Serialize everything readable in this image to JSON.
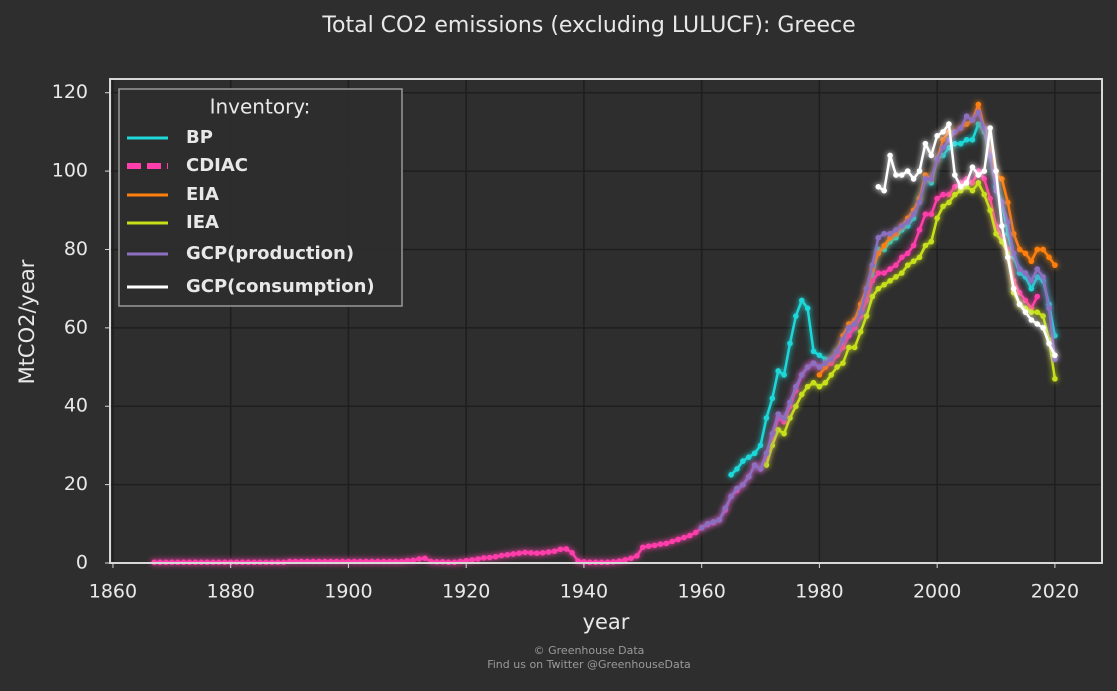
{
  "chart_data": {
    "type": "line",
    "title": "Total CO2 emissions (excluding LULUCF): Greece",
    "xlabel": "year",
    "ylabel": "MtCO2/year",
    "legend_title": "Inventory:",
    "legend": "upper left",
    "credits": [
      "© Greenhouse Data",
      "Find us on Twitter @GreenhouseData"
    ],
    "xlim": [
      1859.5,
      2028
    ],
    "ylim": [
      0,
      123.5
    ],
    "xticks": [
      1860,
      1880,
      1900,
      1920,
      1940,
      1960,
      1980,
      2000,
      2020
    ],
    "yticks": [
      0,
      20,
      40,
      60,
      80,
      100,
      120
    ],
    "grid": true,
    "series": [
      {
        "name": "BP",
        "color": "#1fd8d8",
        "dash": false,
        "x": [
          1965,
          1966,
          1967,
          1968,
          1969,
          1970,
          1971,
          1972,
          1973,
          1974,
          1975,
          1976,
          1977,
          1978,
          1979,
          1980,
          1981,
          1982,
          1983,
          1984,
          1985,
          1986,
          1987,
          1988,
          1989,
          1990,
          1991,
          1992,
          1993,
          1994,
          1995,
          1996,
          1997,
          1998,
          1999,
          2000,
          2001,
          2002,
          2003,
          2004,
          2005,
          2006,
          2007,
          2008,
          2009,
          2010,
          2011,
          2012,
          2013,
          2014,
          2015,
          2016,
          2017,
          2018,
          2019,
          2020
        ],
        "values": [
          22.5,
          24,
          26,
          27,
          28,
          30,
          37,
          42,
          49,
          48,
          56,
          63,
          67,
          65,
          54,
          53,
          52,
          52,
          54,
          56,
          59,
          60,
          63,
          67,
          73,
          80,
          80,
          82,
          83,
          85,
          86,
          88,
          93,
          98,
          97,
          103,
          104,
          106,
          107,
          107,
          108,
          108,
          112,
          110,
          104,
          96,
          92,
          84,
          78,
          74,
          73,
          70,
          73,
          72,
          66,
          58
        ]
      },
      {
        "name": "CDIAC",
        "color": "#ff3dab",
        "dash": true,
        "x": [
          1867,
          1868,
          1869,
          1870,
          1871,
          1872,
          1873,
          1874,
          1875,
          1876,
          1877,
          1878,
          1879,
          1880,
          1881,
          1882,
          1883,
          1884,
          1885,
          1886,
          1887,
          1888,
          1889,
          1890,
          1891,
          1892,
          1893,
          1894,
          1895,
          1896,
          1897,
          1898,
          1899,
          1900,
          1901,
          1902,
          1903,
          1904,
          1905,
          1906,
          1907,
          1908,
          1909,
          1910,
          1911,
          1912,
          1913,
          1914,
          1915,
          1916,
          1917,
          1918,
          1919,
          1920,
          1921,
          1922,
          1923,
          1924,
          1925,
          1926,
          1927,
          1928,
          1929,
          1930,
          1931,
          1932,
          1933,
          1934,
          1935,
          1936,
          1937,
          1938,
          1939,
          1940,
          1941,
          1942,
          1943,
          1944,
          1945,
          1946,
          1947,
          1948,
          1949,
          1950,
          1951,
          1952,
          1953,
          1954,
          1955,
          1956,
          1957,
          1958,
          1959,
          1960,
          1961,
          1962,
          1963,
          1964,
          1965,
          1966,
          1967,
          1968,
          1969,
          1970,
          1971,
          1972,
          1973,
          1974,
          1975,
          1976,
          1977,
          1978,
          1979,
          1980,
          1981,
          1982,
          1983,
          1984,
          1985,
          1986,
          1987,
          1988,
          1989,
          1990,
          1991,
          1992,
          1993,
          1994,
          1995,
          1996,
          1997,
          1998,
          1999,
          2000,
          2001,
          2002,
          2003,
          2004,
          2005,
          2006,
          2007,
          2008,
          2009,
          2010,
          2011,
          2012,
          2013,
          2014,
          2015,
          2016,
          2017
        ],
        "values": [
          0.2,
          0.2,
          0.2,
          0.2,
          0.2,
          0.2,
          0.2,
          0.2,
          0.2,
          0.2,
          0.2,
          0.2,
          0.2,
          0.2,
          0.2,
          0.2,
          0.2,
          0.2,
          0.2,
          0.2,
          0.2,
          0.2,
          0.2,
          0.4,
          0.4,
          0.4,
          0.4,
          0.4,
          0.4,
          0.4,
          0.4,
          0.4,
          0.4,
          0.4,
          0.4,
          0.4,
          0.4,
          0.4,
          0.4,
          0.4,
          0.4,
          0.4,
          0.4,
          0.6,
          0.7,
          1.0,
          1.2,
          0.4,
          0.3,
          0.3,
          0.2,
          0.2,
          0.4,
          0.6,
          0.8,
          1.0,
          1.3,
          1.4,
          1.6,
          1.9,
          2.1,
          2.3,
          2.5,
          2.7,
          2.6,
          2.5,
          2.6,
          2.8,
          3.0,
          3.5,
          3.6,
          2.6,
          0.5,
          0.3,
          0.2,
          0.2,
          0.2,
          0.2,
          0.3,
          0.5,
          0.8,
          1.2,
          1.8,
          4.0,
          4.3,
          4.5,
          4.8,
          5.0,
          5.5,
          6.0,
          6.5,
          7.0,
          7.8,
          9.0,
          9.8,
          10.3,
          11.0,
          13.5,
          17,
          18.5,
          20,
          22,
          25,
          24,
          27,
          32,
          37,
          36,
          40,
          44,
          48,
          50,
          51,
          50,
          50,
          51,
          53,
          55,
          58,
          60,
          63,
          67,
          72,
          74,
          74,
          75,
          76,
          78,
          79,
          81,
          85,
          89,
          89,
          93,
          94,
          94,
          96,
          97,
          98,
          97,
          100,
          98,
          93,
          86,
          83,
          80,
          72,
          69,
          67,
          65,
          68
        ]
      },
      {
        "name": "EIA",
        "color": "#ff7f0e",
        "dash": false,
        "x": [
          1980,
          1981,
          1982,
          1983,
          1984,
          1985,
          1986,
          1987,
          1988,
          1989,
          1990,
          1991,
          1992,
          1993,
          1994,
          1995,
          1996,
          1997,
          1998,
          1999,
          2000,
          2001,
          2002,
          2003,
          2004,
          2005,
          2006,
          2007,
          2008,
          2009,
          2010,
          2011,
          2012,
          2013,
          2014,
          2015,
          2016,
          2017,
          2018,
          2019,
          2020
        ],
        "values": [
          48,
          50,
          52,
          54,
          58,
          61,
          62,
          66,
          70,
          75,
          79,
          81,
          83,
          84,
          86,
          88,
          90,
          93,
          99,
          98,
          103,
          108,
          110,
          110,
          111,
          112,
          113,
          117,
          111,
          105,
          99,
          98,
          92,
          84,
          80,
          79,
          77,
          80,
          80,
          78,
          76
        ]
      },
      {
        "name": "IEA",
        "color": "#c8e01a",
        "dash": false,
        "x": [
          1971,
          1972,
          1973,
          1974,
          1975,
          1976,
          1977,
          1978,
          1979,
          1980,
          1981,
          1982,
          1983,
          1984,
          1985,
          1986,
          1987,
          1988,
          1989,
          1990,
          1991,
          1992,
          1993,
          1994,
          1995,
          1996,
          1997,
          1998,
          1999,
          2000,
          2001,
          2002,
          2003,
          2004,
          2005,
          2006,
          2007,
          2008,
          2009,
          2010,
          2011,
          2012,
          2013,
          2014,
          2015,
          2016,
          2017,
          2018,
          2019,
          2020
        ],
        "values": [
          25,
          30,
          34,
          33,
          37,
          40,
          43,
          45,
          46,
          45,
          46,
          48,
          50,
          51,
          55,
          55,
          59,
          63,
          68,
          70,
          71,
          72,
          73,
          74,
          76,
          77,
          78,
          81,
          82,
          88,
          91,
          92,
          94,
          95,
          96,
          95,
          97,
          94,
          90,
          84,
          82,
          79,
          69,
          66,
          65,
          64,
          64,
          63,
          57,
          47
        ]
      },
      {
        "name": "GCP(production)",
        "color": "#8c6fc0",
        "dash": false,
        "x": [
          1960,
          1961,
          1962,
          1963,
          1964,
          1965,
          1966,
          1967,
          1968,
          1969,
          1970,
          1971,
          1972,
          1973,
          1974,
          1975,
          1976,
          1977,
          1978,
          1979,
          1980,
          1981,
          1982,
          1983,
          1984,
          1985,
          1986,
          1987,
          1988,
          1989,
          1990,
          1991,
          1992,
          1993,
          1994,
          1995,
          1996,
          1997,
          1998,
          1999,
          2000,
          2001,
          2002,
          2003,
          2004,
          2005,
          2006,
          2007,
          2008,
          2009,
          2010,
          2011,
          2012,
          2013,
          2014,
          2015,
          2016,
          2017,
          2018,
          2019,
          2020
        ],
        "values": [
          9,
          10,
          10.5,
          11,
          14,
          17,
          19,
          20,
          22,
          25,
          24,
          28,
          33,
          38,
          37,
          41,
          45,
          48,
          50,
          51,
          50,
          51,
          52,
          54,
          57,
          60,
          61,
          64,
          70,
          76,
          83,
          84,
          84,
          85,
          86,
          87,
          89,
          92,
          98,
          98,
          103,
          106,
          108,
          110,
          111,
          114,
          113,
          115,
          111,
          104,
          95,
          92,
          87,
          79,
          75,
          74,
          72,
          75,
          73,
          65,
          52
        ]
      },
      {
        "name": "GCP(consumption)",
        "color": "#ffffff",
        "dash": false,
        "x": [
          1990,
          1991,
          1992,
          1993,
          1994,
          1995,
          1996,
          1997,
          1998,
          1999,
          2000,
          2001,
          2002,
          2003,
          2004,
          2005,
          2006,
          2007,
          2008,
          2009,
          2010,
          2011,
          2012,
          2013,
          2014,
          2015,
          2016,
          2017,
          2018,
          2019,
          2020
        ],
        "values": [
          96,
          95,
          104,
          99,
          99,
          100,
          98,
          100,
          107,
          104,
          109,
          110,
          112,
          99,
          96,
          97,
          101,
          99,
          100,
          111,
          100,
          86,
          78,
          70,
          66,
          64,
          62,
          61,
          60,
          56,
          53
        ]
      }
    ]
  }
}
